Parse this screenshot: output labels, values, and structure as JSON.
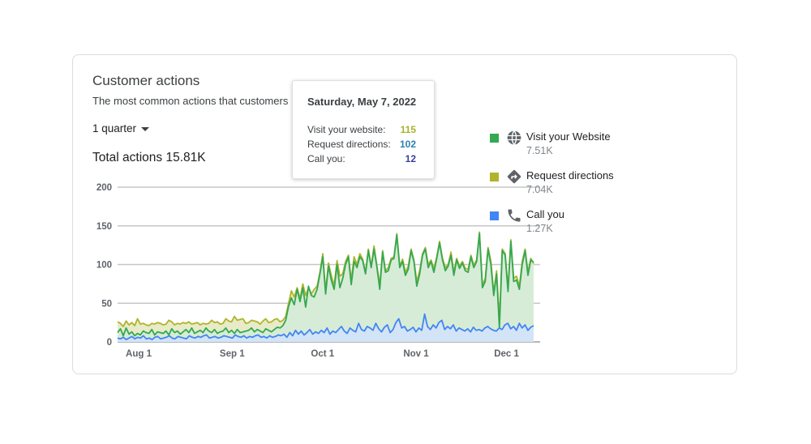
{
  "card": {
    "title": "Customer actions",
    "subtitle": "The most common actions that customers",
    "period": "1 quarter",
    "total": "Total actions 15.81K"
  },
  "tooltip": {
    "date": "Saturday, May 7, 2022",
    "rows": [
      {
        "label": "Visit your website:",
        "value": "115",
        "color": "#a7b42a"
      },
      {
        "label": "Request directions:",
        "value": "102",
        "color": "#2e7fae"
      },
      {
        "label": "Call you:",
        "value": "12",
        "color": "#3a3f9e"
      }
    ]
  },
  "legend": [
    {
      "label": "Visit your Website",
      "value": "7.51K",
      "color": "#34a853",
      "icon": "globe-icon"
    },
    {
      "label": "Request directions",
      "value": "7.04K",
      "color": "#afb42b",
      "icon": "directions-icon"
    },
    {
      "label": "Call you",
      "value": "1.27K",
      "color": "#4285f4",
      "icon": "phone-icon"
    }
  ],
  "chart_data": {
    "type": "area",
    "ylim": [
      0,
      200
    ],
    "yticks": [
      0,
      50,
      100,
      150,
      200
    ],
    "xticks": [
      "Aug 1",
      "Sep 1",
      "Oct 1",
      "Nov 1",
      "Dec 1"
    ],
    "x_start": "2022-07-25",
    "x_end": "2022-12-10",
    "grid": true,
    "series": [
      {
        "name": "Visit your Website",
        "color": "#34a853",
        "fill": "#d3ecd8",
        "values": [
          12,
          17,
          8,
          18,
          10,
          13,
          8,
          11,
          9,
          14,
          12,
          11,
          16,
          9,
          13,
          12,
          11,
          14,
          9,
          17,
          12,
          14,
          10,
          13,
          16,
          12,
          18,
          11,
          13,
          15,
          12,
          18,
          14,
          12,
          16,
          11,
          13,
          14,
          18,
          12,
          15,
          11,
          16,
          12,
          13,
          14,
          15,
          18,
          13,
          16,
          14,
          12,
          17,
          15,
          13,
          16,
          19,
          18,
          21,
          28,
          46,
          57,
          48,
          68,
          52,
          70,
          45,
          72,
          60,
          58,
          68,
          88,
          110,
          62,
          98,
          80,
          68,
          100,
          70,
          82,
          100,
          110,
          74,
          104,
          96,
          110,
          105,
          88,
          118,
          96,
          120,
          97,
          68,
          116,
          90,
          92,
          106,
          108,
          138,
          96,
          104,
          86,
          94,
          118,
          104,
          72,
          88,
          112,
          120,
          96,
          104,
          90,
          108,
          128,
          106,
          92,
          98,
          112,
          86,
          106,
          95,
          102,
          92,
          90,
          110,
          96,
          104,
          140,
          70,
          78,
          120,
          100,
          60,
          88,
          18,
          118,
          112,
          65,
          130,
          78,
          80,
          68,
          100,
          118,
          86,
          106,
          103
        ]
      },
      {
        "name": "Request directions",
        "color": "#afb42b",
        "fill": "#e4e8bd",
        "values": [
          26,
          24,
          20,
          27,
          22,
          25,
          21,
          30,
          23,
          24,
          22,
          21,
          24,
          23,
          25,
          24,
          22,
          23,
          28,
          26,
          22,
          24,
          23,
          25,
          24,
          26,
          23,
          24,
          25,
          22,
          24,
          23,
          24,
          28,
          25,
          26,
          23,
          24,
          30,
          27,
          26,
          33,
          28,
          29,
          30,
          24,
          25,
          28,
          27,
          26,
          23,
          27,
          30,
          25,
          26,
          29,
          30,
          26,
          28,
          33,
          50,
          66,
          58,
          70,
          56,
          75,
          60,
          70,
          62,
          68,
          72,
          90,
          114,
          66,
          102,
          86,
          73,
          105,
          85,
          88,
          104,
          112,
          80,
          110,
          100,
          114,
          107,
          90,
          120,
          98,
          124,
          99,
          74,
          118,
          92,
          96,
          108,
          110,
          140,
          98,
          107,
          90,
          98,
          120,
          106,
          78,
          92,
          114,
          122,
          100,
          106,
          94,
          110,
          130,
          108,
          96,
          100,
          116,
          90,
          108,
          98,
          104,
          95,
          94,
          112,
          99,
          106,
          142,
          74,
          82,
          122,
          104,
          64,
          92,
          28,
          120,
          114,
          70,
          132,
          82,
          85,
          72,
          104,
          120,
          90,
          108,
          101
        ]
      },
      {
        "name": "Call you",
        "color": "#4285f4",
        "fill": "#d2e3fc",
        "values": [
          5,
          4,
          6,
          3,
          5,
          7,
          4,
          6,
          5,
          8,
          4,
          5,
          3,
          6,
          7,
          4,
          5,
          6,
          8,
          5,
          4,
          7,
          6,
          5,
          4,
          8,
          6,
          5,
          7,
          6,
          8,
          9,
          5,
          6,
          7,
          5,
          6,
          8,
          7,
          6,
          5,
          9,
          7,
          6,
          8,
          5,
          7,
          6,
          8,
          9,
          6,
          7,
          5,
          8,
          6,
          7,
          9,
          8,
          10,
          6,
          12,
          8,
          15,
          10,
          14,
          9,
          12,
          16,
          10,
          13,
          11,
          15,
          12,
          18,
          10,
          14,
          12,
          16,
          20,
          14,
          11,
          18,
          15,
          13,
          24,
          16,
          14,
          20,
          18,
          15,
          24,
          17,
          13,
          19,
          22,
          12,
          16,
          25,
          30,
          18,
          20,
          14,
          16,
          19,
          13,
          18,
          15,
          36,
          20,
          16,
          22,
          18,
          25,
          28,
          16,
          20,
          17,
          22,
          14,
          18,
          16,
          14,
          17,
          13,
          19,
          15,
          16,
          14,
          18,
          20,
          17,
          15,
          14,
          18,
          16,
          22,
          24,
          17,
          20,
          15,
          24,
          18,
          22,
          15,
          19,
          21
        ]
      }
    ]
  }
}
